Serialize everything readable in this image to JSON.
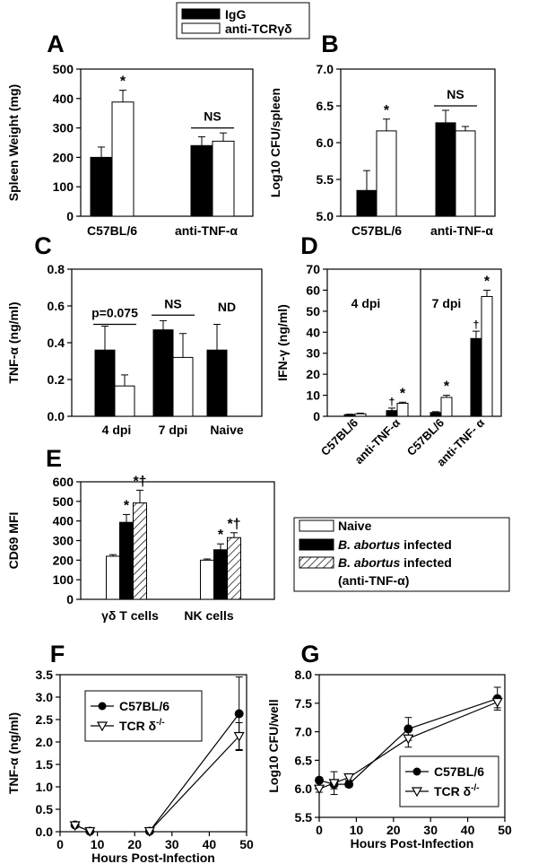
{
  "figure": {
    "top_legend": {
      "items": [
        {
          "label": "IgG",
          "fill": "#000000"
        },
        {
          "label": "anti-TCRγδ",
          "fill": "#ffffff"
        }
      ]
    }
  },
  "chart_data": [
    {
      "id": "A",
      "panel_label": "A",
      "type": "bar",
      "ylabel": "Spleen Weight (mg)",
      "xlabel": "",
      "ylim": [
        0,
        500
      ],
      "yticks": [
        0,
        100,
        200,
        300,
        400,
        500
      ],
      "categories": [
        "C57BL/6",
        "anti-TNF-α"
      ],
      "series": [
        {
          "name": "IgG",
          "values": [
            200,
            240
          ],
          "errors": [
            35,
            30
          ]
        },
        {
          "name": "anti-TCRγδ",
          "values": [
            388,
            255
          ],
          "errors": [
            40,
            28
          ]
        }
      ],
      "annotations": [
        {
          "text": "*",
          "category": 0,
          "series": 1
        },
        {
          "text": "NS",
          "category": 1,
          "bracket": true,
          "y": 300
        }
      ]
    },
    {
      "id": "B",
      "panel_label": "B",
      "type": "bar",
      "ylabel": "Log10 CFU/spleen",
      "xlabel": "",
      "ylim": [
        5.0,
        7.0
      ],
      "yticks": [
        5.0,
        5.5,
        6.0,
        6.5,
        7.0
      ],
      "categories": [
        "C57BL/6",
        "anti-TNF-α"
      ],
      "series": [
        {
          "name": "IgG",
          "values": [
            5.35,
            6.27
          ],
          "errors": [
            0.27,
            0.17
          ]
        },
        {
          "name": "anti-TCRγδ",
          "values": [
            6.16,
            6.16
          ],
          "errors": [
            0.16,
            0.06
          ]
        }
      ],
      "annotations": [
        {
          "text": "*",
          "category": 0,
          "series": 1
        },
        {
          "text": "NS",
          "category": 1,
          "bracket": true,
          "y": 6.5
        }
      ]
    },
    {
      "id": "C",
      "panel_label": "C",
      "type": "bar",
      "ylabel": "TNF-α (ng/ml)",
      "xlabel": "",
      "ylim": [
        0,
        0.8
      ],
      "yticks": [
        0.0,
        0.2,
        0.4,
        0.6,
        0.8
      ],
      "categories": [
        "4 dpi",
        "7 dpi",
        "Naive"
      ],
      "series": [
        {
          "name": "IgG",
          "values": [
            0.36,
            0.47,
            0.36
          ],
          "errors": [
            0.13,
            0.05,
            0.14
          ]
        },
        {
          "name": "anti-TCRγδ",
          "values": [
            0.165,
            0.32,
            null
          ],
          "errors": [
            0.06,
            0.13,
            null
          ]
        }
      ],
      "annotations": [
        {
          "text": "p=0.075",
          "category": 0,
          "bracket": true,
          "y": 0.5
        },
        {
          "text": "NS",
          "category": 1,
          "bracket": true,
          "y": 0.55
        },
        {
          "text": "ND",
          "category": 2,
          "y": 0.57
        }
      ]
    },
    {
      "id": "D",
      "panel_label": "D",
      "type": "bar",
      "ylabel": "IFN-γ (ng/ml)",
      "xlabel": "",
      "ylim": [
        0,
        70
      ],
      "yticks": [
        0,
        10,
        20,
        30,
        40,
        50,
        60,
        70
      ],
      "groups": [
        "4 dpi",
        "7 dpi"
      ],
      "categories": [
        "C57BL/6",
        "anti-TNF-α",
        "C57BL/6",
        "anti-TNF- α"
      ],
      "series": [
        {
          "name": "IgG",
          "values": [
            0.8,
            2.7,
            1.8,
            37
          ],
          "errors": [
            0.2,
            1.2,
            0.4,
            3.5
          ]
        },
        {
          "name": "anti-TCRγδ",
          "values": [
            1.2,
            6.2,
            9.0,
            57
          ],
          "errors": [
            0.3,
            0.5,
            1.0,
            3.0
          ]
        }
      ],
      "annotations": [
        {
          "text": "†",
          "category": 1,
          "series": 0
        },
        {
          "text": "*",
          "category": 1,
          "series": 1
        },
        {
          "text": "*",
          "category": 2,
          "series": 1
        },
        {
          "text": "†",
          "category": 3,
          "series": 0
        },
        {
          "text": "*",
          "category": 3,
          "series": 1
        }
      ]
    },
    {
      "id": "E",
      "panel_label": "E",
      "type": "bar",
      "ylabel": "CD69 MFI",
      "xlabel": "",
      "ylim": [
        0,
        600
      ],
      "yticks": [
        0,
        100,
        200,
        300,
        400,
        500,
        600
      ],
      "categories": [
        "γδ T cells",
        "NK cells"
      ],
      "series": [
        {
          "name": "Naive",
          "values": [
            220,
            200
          ],
          "errors": [
            8,
            6
          ],
          "fill": "white"
        },
        {
          "name": "B. abortus infected",
          "values": [
            393,
            253
          ],
          "errors": [
            40,
            30
          ],
          "fill": "black"
        },
        {
          "name": "B. abortus infected (anti-TNF-α)",
          "values": [
            492,
            315
          ],
          "errors": [
            65,
            25
          ],
          "fill": "hatch"
        }
      ],
      "legend": [
        {
          "lines": [
            {
              "text": "Naive",
              "italic": false
            }
          ],
          "fill": "white"
        },
        {
          "lines": [
            {
              "text": "B. abortus",
              "italic": true
            },
            {
              "text": " infected",
              "italic": false
            }
          ],
          "fill": "black"
        },
        {
          "lines": [
            {
              "text": "B. abortus",
              "italic": true
            },
            {
              "text": " infected",
              "italic": false
            }
          ],
          "fill": "hatch"
        },
        {
          "lines": [
            {
              "text": "(anti-TNF-α)",
              "italic": false
            }
          ],
          "fill": "none"
        }
      ],
      "annotations": [
        {
          "text": "*",
          "category": 0,
          "series": 1
        },
        {
          "text": "*†",
          "category": 0,
          "series": 2
        },
        {
          "text": "*",
          "category": 1,
          "series": 1
        },
        {
          "text": "*†",
          "category": 1,
          "series": 2
        }
      ]
    },
    {
      "id": "F",
      "panel_label": "F",
      "type": "line",
      "ylabel": "TNF-α (ng/ml)",
      "xlabel": "Hours Post-Infection",
      "xlim": [
        0,
        50
      ],
      "xticks": [
        0,
        10,
        20,
        30,
        40,
        50
      ],
      "ylim": [
        0,
        3.5
      ],
      "yticks": [
        0.0,
        0.5,
        1.0,
        1.5,
        2.0,
        2.5,
        3.0,
        3.5
      ],
      "legend": [
        "C57BL/6",
        "TCR δ-/-"
      ],
      "series": [
        {
          "name": "C57BL/6",
          "marker": "circle",
          "segments": [
            {
              "x": [
                4,
                8
              ],
              "y": [
                0.15,
                0.01
              ],
              "err": [
                0.02,
                0.01
              ]
            },
            {
              "x": [
                24,
                48
              ],
              "y": [
                0.01,
                2.63
              ],
              "err": [
                0.01,
                0.82
              ]
            }
          ]
        },
        {
          "name": "TCR δ-/-",
          "marker": "triangle-down",
          "segments": [
            {
              "x": [
                4,
                8
              ],
              "y": [
                0.14,
                0.01
              ],
              "err": [
                0.02,
                0.01
              ]
            },
            {
              "x": [
                24,
                48
              ],
              "y": [
                0.01,
                2.13
              ],
              "err": [
                0.01,
                0.3
              ]
            }
          ]
        }
      ]
    },
    {
      "id": "G",
      "panel_label": "G",
      "type": "line",
      "ylabel": "Log10 CFU/well",
      "xlabel": "Hours Post-Infection",
      "xlim": [
        0,
        50
      ],
      "xticks": [
        0,
        10,
        20,
        30,
        40,
        50
      ],
      "ylim": [
        5.5,
        8.0
      ],
      "yticks": [
        5.5,
        6.0,
        6.5,
        7.0,
        7.5,
        8.0
      ],
      "legend": [
        "C57BL/6",
        "TCR δ-/-"
      ],
      "series": [
        {
          "name": "C57BL/6",
          "marker": "circle",
          "segments": [
            {
              "x": [
                0,
                4,
                8,
                24,
                48
              ],
              "y": [
                6.15,
                6.08,
                6.08,
                7.05,
                7.58
              ],
              "err": [
                0.05,
                0.08,
                0.05,
                0.2,
                0.2
              ]
            }
          ]
        },
        {
          "name": "TCR δ-/-",
          "marker": "triangle-down",
          "segments": [
            {
              "x": [
                0,
                4,
                8,
                24,
                48
              ],
              "y": [
                6.0,
                6.1,
                6.2,
                6.88,
                7.52
              ],
              "err": [
                0.06,
                0.2,
                0.05,
                0.15,
                0.1
              ]
            }
          ]
        }
      ]
    }
  ]
}
